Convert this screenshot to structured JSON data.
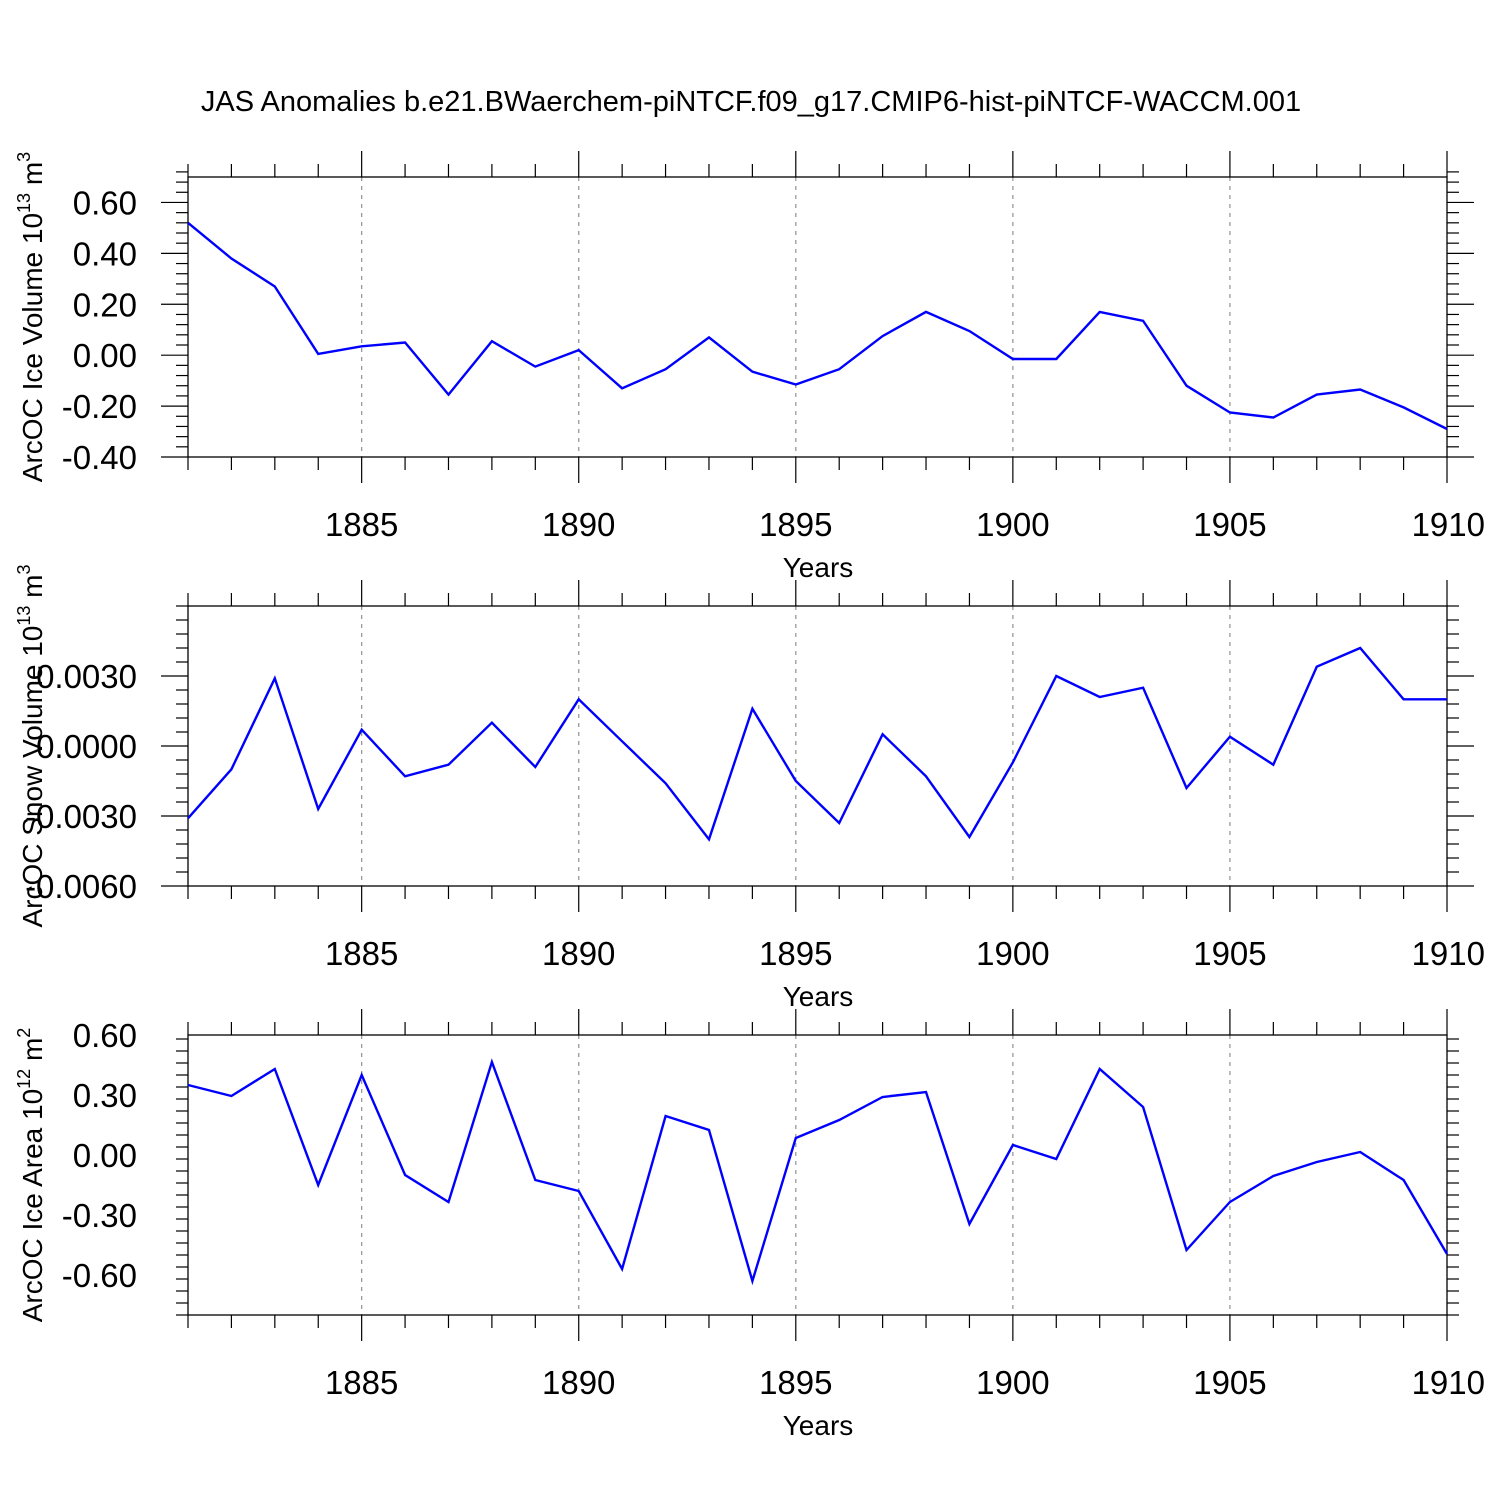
{
  "title": "JAS Anomalies b.e21.BWaerchem-piNTCF.f09_g17.CMIP6-hist-piNTCF-WACCM.001",
  "line_color": "#0000ff",
  "chart_data": [
    {
      "type": "line",
      "name": "ice-volume",
      "title": "JAS Anomalies b.e21.BWaerchem-piNTCF.f09_g17.CMIP6-hist-piNTCF-WACCM.001",
      "ylabel": {
        "base": "ArcOC Ice Volume 10",
        "exp": "13",
        "unit": " m",
        "unit_exp": "3"
      },
      "xlabel": "Years",
      "xlim": [
        1881,
        1910
      ],
      "ylim": [
        -0.4,
        0.7
      ],
      "yticks": [
        -0.4,
        -0.2,
        0.0,
        0.2,
        0.4,
        0.6
      ],
      "ytick_labels": [
        "-0.40",
        "-0.20",
        "0.00",
        "0.20",
        "0.40",
        "0.60"
      ],
      "xticks": [
        1885,
        1890,
        1895,
        1900,
        1905,
        1910
      ],
      "xtick_labels": [
        "1885",
        "1890",
        "1895",
        "1900",
        "1905",
        "1910"
      ],
      "x": [
        1881,
        1882,
        1883,
        1884,
        1885,
        1886,
        1887,
        1888,
        1889,
        1890,
        1891,
        1892,
        1893,
        1894,
        1895,
        1896,
        1897,
        1898,
        1899,
        1900,
        1901,
        1902,
        1903,
        1904,
        1905,
        1906,
        1907,
        1908,
        1909,
        1910
      ],
      "values": [
        0.52,
        0.38,
        0.27,
        0.005,
        0.035,
        0.05,
        -0.155,
        0.055,
        -0.045,
        0.02,
        -0.13,
        -0.055,
        0.07,
        -0.065,
        -0.115,
        -0.055,
        0.075,
        0.17,
        0.095,
        -0.015,
        -0.015,
        0.17,
        0.135,
        -0.12,
        -0.225,
        -0.245,
        -0.155,
        -0.135,
        -0.205,
        -0.29
      ]
    },
    {
      "type": "line",
      "name": "snow-volume",
      "ylabel": {
        "base": "ArcOC Snow Volume 10",
        "exp": "13",
        "unit": " m",
        "unit_exp": "3"
      },
      "xlabel": "Years",
      "xlim": [
        1881,
        1910
      ],
      "ylim": [
        -0.006,
        0.006
      ],
      "yticks": [
        -0.006,
        -0.003,
        0.0,
        0.003
      ],
      "ytick_labels": [
        "-0.0060",
        "-0.0030",
        "0.0000",
        "0.0030"
      ],
      "xticks": [
        1885,
        1890,
        1895,
        1900,
        1905,
        1910
      ],
      "xtick_labels": [
        "1885",
        "1890",
        "1895",
        "1900",
        "1905",
        "1910"
      ],
      "x": [
        1881,
        1882,
        1883,
        1884,
        1885,
        1886,
        1887,
        1888,
        1889,
        1890,
        1891,
        1892,
        1893,
        1894,
        1895,
        1896,
        1897,
        1898,
        1899,
        1900,
        1901,
        1902,
        1903,
        1904,
        1905,
        1906,
        1907,
        1908,
        1909,
        1910
      ],
      "values": [
        -0.0031,
        -0.001,
        0.0029,
        -0.0027,
        0.0007,
        -0.0013,
        -0.0008,
        0.001,
        -0.0009,
        0.002,
        0.0002,
        -0.0016,
        -0.004,
        0.0016,
        -0.0015,
        -0.0033,
        0.0005,
        -0.0013,
        -0.0039,
        -0.0007,
        0.003,
        0.0021,
        0.0025,
        -0.0018,
        0.0004,
        -0.0008,
        0.0034,
        0.0042,
        0.002,
        0.002
      ]
    },
    {
      "type": "line",
      "name": "ice-area",
      "ylabel": {
        "base": "ArcOC Ice Area 10",
        "exp": "12",
        "unit": " m",
        "unit_exp": "2"
      },
      "xlabel": "Years",
      "xlim": [
        1881,
        1910
      ],
      "ylim": [
        -0.8,
        0.6
      ],
      "yticks": [
        -0.6,
        -0.3,
        0.0,
        0.3,
        0.6
      ],
      "ytick_labels": [
        "-0.60",
        "-0.30",
        "0.00",
        "0.30",
        "0.60"
      ],
      "xticks": [
        1885,
        1890,
        1895,
        1900,
        1905,
        1910
      ],
      "xtick_labels": [
        "1885",
        "1890",
        "1895",
        "1900",
        "1905",
        "1910"
      ],
      "x": [
        1881,
        1882,
        1883,
        1884,
        1885,
        1886,
        1887,
        1888,
        1889,
        1890,
        1891,
        1892,
        1893,
        1894,
        1895,
        1896,
        1897,
        1898,
        1899,
        1900,
        1901,
        1902,
        1903,
        1904,
        1905,
        1906,
        1907,
        1908,
        1909,
        1910
      ],
      "values": [
        0.35,
        0.295,
        0.43,
        -0.15,
        0.4,
        -0.1,
        -0.235,
        0.465,
        -0.125,
        -0.18,
        -0.57,
        0.195,
        0.125,
        -0.63,
        0.085,
        0.175,
        0.29,
        0.315,
        -0.345,
        0.05,
        -0.02,
        0.43,
        0.24,
        -0.475,
        -0.235,
        -0.105,
        -0.035,
        0.015,
        -0.125,
        -0.495
      ]
    }
  ]
}
